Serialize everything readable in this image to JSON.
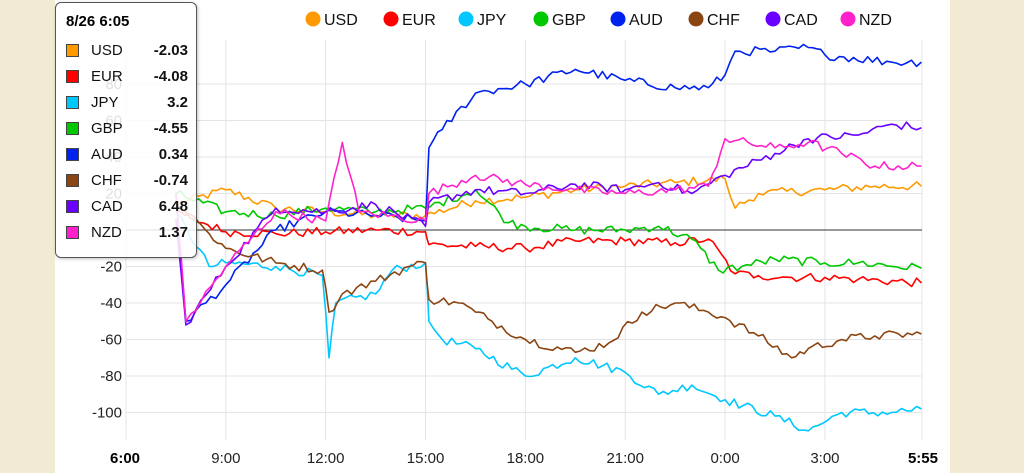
{
  "chart_data": {
    "type": "line",
    "ylim": [
      -115,
      100
    ],
    "yticks": [
      -100,
      -80,
      -60,
      -40,
      -20,
      20,
      40,
      60,
      80
    ],
    "x_ticks": [
      {
        "label": "6:00",
        "h": 0,
        "bold": true
      },
      {
        "label": "9:00",
        "h": 3,
        "bold": false
      },
      {
        "label": "12:00",
        "h": 6,
        "bold": false
      },
      {
        "label": "15:00",
        "h": 9,
        "bold": false
      },
      {
        "label": "18:00",
        "h": 12,
        "bold": false
      },
      {
        "label": "21:00",
        "h": 15,
        "bold": false
      },
      {
        "label": "0:00",
        "h": 18,
        "bold": false
      },
      {
        "label": "3:00",
        "h": 21,
        "bold": false
      },
      {
        "label": "5:55",
        "h": 23.9167,
        "bold": true
      }
    ],
    "xlim_hours": [
      0,
      23.9167
    ],
    "x_unit": "hours since 6:00",
    "zero_line": true,
    "legend_position": "top",
    "series": [
      {
        "name": "USD",
        "color": "#ff9900",
        "data": [
          [
            1.5,
            14
          ],
          [
            3,
            22
          ],
          [
            4.5,
            12
          ],
          [
            6,
            10
          ],
          [
            7.5,
            8
          ],
          [
            9,
            8
          ],
          [
            10.5,
            16
          ],
          [
            12,
            18
          ],
          [
            13.5,
            22
          ],
          [
            15,
            24
          ],
          [
            16.5,
            26
          ],
          [
            18,
            28
          ],
          [
            18.3,
            12
          ],
          [
            19,
            20
          ],
          [
            21,
            22
          ],
          [
            22.5,
            24
          ],
          [
            23.9,
            24
          ]
        ]
      },
      {
        "name": "EUR",
        "color": "#ff0000",
        "data": [
          [
            1.5,
            10
          ],
          [
            3,
            -1
          ],
          [
            4.5,
            -2
          ],
          [
            6,
            -1
          ],
          [
            7.5,
            0
          ],
          [
            9,
            -1
          ],
          [
            9.1,
            -8
          ],
          [
            10.5,
            -9
          ],
          [
            12,
            -10
          ],
          [
            13.5,
            -6
          ],
          [
            15,
            -6
          ],
          [
            16.5,
            -7
          ],
          [
            17.5,
            -5
          ],
          [
            18.3,
            -24
          ],
          [
            19,
            -25
          ],
          [
            20,
            -26
          ],
          [
            21,
            -26
          ],
          [
            22,
            -27
          ],
          [
            23.9,
            -29
          ]
        ]
      },
      {
        "name": "JPY",
        "color": "#00c8ff",
        "data": [
          [
            1.5,
            10
          ],
          [
            2.5,
            -20
          ],
          [
            3,
            -18
          ],
          [
            4.5,
            -20
          ],
          [
            5.9,
            -25
          ],
          [
            6.1,
            -70
          ],
          [
            6.3,
            -40
          ],
          [
            7.5,
            -35
          ],
          [
            8,
            -22
          ],
          [
            9,
            -18
          ],
          [
            9.1,
            -50
          ],
          [
            9.5,
            -60
          ],
          [
            10.5,
            -65
          ],
          [
            12,
            -80
          ],
          [
            13.5,
            -70
          ],
          [
            15,
            -78
          ],
          [
            16,
            -90
          ],
          [
            17,
            -85
          ],
          [
            18,
            -93
          ],
          [
            19.5,
            -102
          ],
          [
            20.5,
            -110
          ],
          [
            21.5,
            -100
          ],
          [
            23,
            -100
          ],
          [
            23.9,
            -98
          ]
        ]
      },
      {
        "name": "GBP",
        "color": "#00c800",
        "data": [
          [
            1.5,
            20
          ],
          [
            3,
            10
          ],
          [
            4.5,
            8
          ],
          [
            6,
            12
          ],
          [
            7.5,
            10
          ],
          [
            9,
            12
          ],
          [
            10.5,
            22
          ],
          [
            11.5,
            4
          ],
          [
            12,
            2
          ],
          [
            13.5,
            0
          ],
          [
            15,
            0
          ],
          [
            16,
            2
          ],
          [
            17,
            -5
          ],
          [
            17.8,
            -22
          ],
          [
            18.5,
            -20
          ],
          [
            19.5,
            -16
          ],
          [
            21,
            -18
          ],
          [
            22,
            -18
          ],
          [
            23.9,
            -21
          ]
        ]
      },
      {
        "name": "AUD",
        "color": "#0022ee",
        "data": [
          [
            1.5,
            20
          ],
          [
            1.8,
            -50
          ],
          [
            3,
            -30
          ],
          [
            4.5,
            0
          ],
          [
            6,
            10
          ],
          [
            7.5,
            8
          ],
          [
            9,
            5
          ],
          [
            9.1,
            45
          ],
          [
            9.5,
            55
          ],
          [
            10.5,
            75
          ],
          [
            12,
            80
          ],
          [
            13.5,
            88
          ],
          [
            15,
            82
          ],
          [
            16.5,
            78
          ],
          [
            17.5,
            78
          ],
          [
            18,
            85
          ],
          [
            18.3,
            98
          ],
          [
            19.5,
            98
          ],
          [
            20.5,
            100
          ],
          [
            21,
            96
          ],
          [
            23,
            92
          ],
          [
            23.9,
            92
          ]
        ]
      },
      {
        "name": "CHF",
        "color": "#8b4513",
        "data": [
          [
            1.5,
            15
          ],
          [
            2.5,
            -2
          ],
          [
            3,
            -10
          ],
          [
            4.5,
            -18
          ],
          [
            5.9,
            -22
          ],
          [
            6.1,
            -45
          ],
          [
            6.5,
            -35
          ],
          [
            7.5,
            -28
          ],
          [
            8.5,
            -20
          ],
          [
            9,
            -18
          ],
          [
            9.1,
            -38
          ],
          [
            10,
            -40
          ],
          [
            10.5,
            -45
          ],
          [
            11,
            -50
          ],
          [
            12,
            -60
          ],
          [
            13.5,
            -67
          ],
          [
            14.5,
            -62
          ],
          [
            15.5,
            -45
          ],
          [
            16.5,
            -40
          ],
          [
            17.5,
            -45
          ],
          [
            18,
            -48
          ],
          [
            19,
            -58
          ],
          [
            20,
            -70
          ],
          [
            20.5,
            -65
          ],
          [
            21.5,
            -60
          ],
          [
            22.5,
            -58
          ],
          [
            23.9,
            -57
          ]
        ]
      },
      {
        "name": "CAD",
        "color": "#6a00ff",
        "data": [
          [
            1.5,
            6
          ],
          [
            1.8,
            -52
          ],
          [
            3,
            -20
          ],
          [
            4.5,
            12
          ],
          [
            6,
            10
          ],
          [
            7.5,
            14
          ],
          [
            9,
            2
          ],
          [
            9.1,
            15
          ],
          [
            10.5,
            22
          ],
          [
            12,
            20
          ],
          [
            13.5,
            25
          ],
          [
            15,
            22
          ],
          [
            16,
            26
          ],
          [
            17,
            20
          ],
          [
            18,
            30
          ],
          [
            19.5,
            42
          ],
          [
            20.5,
            50
          ],
          [
            22,
            52
          ],
          [
            23,
            58
          ],
          [
            23.9,
            56
          ]
        ]
      },
      {
        "name": "NZD",
        "color": "#ff22cc",
        "data": [
          [
            1.5,
            20
          ],
          [
            1.8,
            -50
          ],
          [
            3,
            -20
          ],
          [
            4.5,
            10
          ],
          [
            6,
            5
          ],
          [
            6.5,
            48
          ],
          [
            7,
            10
          ],
          [
            9,
            5
          ],
          [
            9.1,
            20
          ],
          [
            10.5,
            30
          ],
          [
            12,
            25
          ],
          [
            13.5,
            22
          ],
          [
            15,
            20
          ],
          [
            16.5,
            22
          ],
          [
            17.5,
            24
          ],
          [
            18,
            50
          ],
          [
            19.5,
            45
          ],
          [
            20.5,
            48
          ],
          [
            21.5,
            42
          ],
          [
            22.5,
            35
          ],
          [
            23.9,
            35
          ]
        ]
      }
    ]
  },
  "tooltip": {
    "title": "8/26 6:05",
    "rows": [
      {
        "name": "USD",
        "value": "-2.03",
        "color": "#ff9900"
      },
      {
        "name": "EUR",
        "value": "-4.08",
        "color": "#ff0000"
      },
      {
        "name": "JPY",
        "value": "3.2",
        "color": "#00c8ff"
      },
      {
        "name": "GBP",
        "value": "-4.55",
        "color": "#00c800"
      },
      {
        "name": "AUD",
        "value": "0.34",
        "color": "#0022ee"
      },
      {
        "name": "CHF",
        "value": "-0.74",
        "color": "#8b4513"
      },
      {
        "name": "CAD",
        "value": "6.48",
        "color": "#6a00ff"
      },
      {
        "name": "NZD",
        "value": "1.37",
        "color": "#ff22cc"
      }
    ]
  }
}
